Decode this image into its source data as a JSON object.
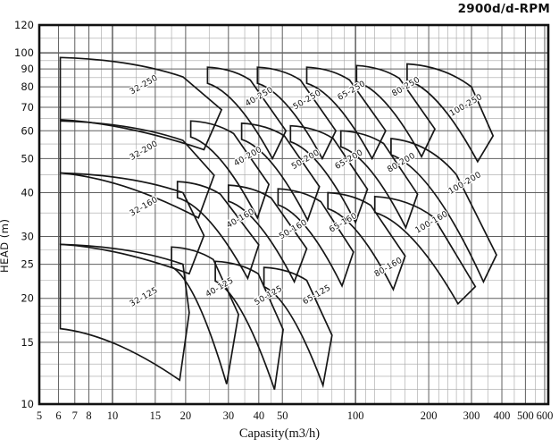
{
  "title": "2900d/d-RPM",
  "chart_data": {
    "type": "area",
    "subtype": "pump-selection-envelope-chart",
    "title": "2900d/d-RPM",
    "xlabel": "Capasity(m3/h)",
    "ylabel": "HEAD (m)",
    "x_scale": "log",
    "y_scale": "log",
    "xlim": [
      5,
      621
    ],
    "ylim": [
      10,
      120
    ],
    "grid": true,
    "x_ticks": [
      5,
      6,
      7,
      8,
      10,
      15,
      20,
      30,
      40,
      50,
      100,
      200,
      300,
      400,
      500,
      600
    ],
    "x_minor_gridlines": [
      9,
      12.5,
      17.5,
      25,
      35,
      45,
      60,
      70,
      80,
      90,
      110,
      120,
      140,
      160,
      180,
      220,
      240,
      260,
      280,
      350,
      450,
      550
    ],
    "y_ticks": [
      10,
      15,
      20,
      25,
      30,
      40,
      50,
      60,
      70,
      80,
      90,
      100,
      120
    ],
    "y_minor_gridlines": [
      11,
      12,
      13,
      14,
      16,
      17,
      18,
      19,
      22.5,
      27.5,
      35,
      45,
      55,
      65,
      75,
      85,
      95,
      110
    ],
    "envelopes": [
      {
        "label": "32-125",
        "tl": [
          6.1,
          28.5
        ],
        "tr": [
          19.5,
          25.0
        ],
        "knee": [
          20.7,
          18.2
        ],
        "v": [
          18.9,
          11.7
        ],
        "bl": [
          6.1,
          16.4
        ],
        "label_pos": [
          13.6,
          19.9
        ]
      },
      {
        "label": "32-160",
        "tl": [
          6.1,
          45.5
        ],
        "tr": [
          19.5,
          40.0
        ],
        "knee": [
          23.8,
          30.2
        ],
        "v": [
          20.7,
          23.5
        ],
        "bl": [
          6.1,
          28.5
        ],
        "label_pos": [
          13.6,
          36.0
        ]
      },
      {
        "label": "32-200",
        "tl": [
          6.1,
          64.0
        ],
        "tr": [
          19.5,
          56.3
        ],
        "knee": [
          26.2,
          44.8
        ],
        "v": [
          22.6,
          33.9
        ],
        "bl": [
          6.1,
          45.5
        ],
        "label_pos": [
          13.6,
          52.0
        ]
      },
      {
        "label": "32-250",
        "tl": [
          6.1,
          97.0
        ],
        "tr": [
          19.5,
          85.4
        ],
        "knee": [
          28.1,
          68.9
        ],
        "v": [
          23.8,
          53.0
        ],
        "bl": [
          6.1,
          64.5
        ],
        "label_pos": [
          13.6,
          80.0
        ]
      },
      {
        "label": "40-125",
        "tl": [
          17.5,
          28.0
        ],
        "tr": [
          26.0,
          25.8
        ],
        "knee": [
          33.0,
          18.0
        ],
        "v": [
          29.5,
          11.4
        ],
        "bl": [
          17.5,
          24.6
        ],
        "label_pos": [
          27.9,
          21.2
        ]
      },
      {
        "label": "40-160",
        "tl": [
          18.5,
          43.0
        ],
        "tr": [
          27.8,
          39.6
        ],
        "knee": [
          40.0,
          28.4
        ],
        "v": [
          36.0,
          22.8
        ],
        "bl": [
          18.5,
          38.7
        ],
        "label_pos": [
          34.0,
          33.3
        ]
      },
      {
        "label": "40-200",
        "tl": [
          21.0,
          64.0
        ],
        "tr": [
          31.5,
          58.9
        ],
        "knee": [
          44.0,
          42.2
        ],
        "v": [
          39.5,
          33.9
        ],
        "bl": [
          21.0,
          57.6
        ],
        "label_pos": [
          36.5,
          50.0
        ]
      },
      {
        "label": "40-250",
        "tl": [
          24.6,
          91.0
        ],
        "tr": [
          36.9,
          83.7
        ],
        "knee": [
          51.7,
          60.0
        ],
        "v": [
          45.5,
          50.0
        ],
        "bl": [
          24.6,
          81.9
        ],
        "label_pos": [
          40.6,
          74.0
        ]
      },
      {
        "label": "50-125",
        "tl": [
          26.5,
          25.5
        ],
        "tr": [
          39.8,
          23.5
        ],
        "knee": [
          50.4,
          16.3
        ],
        "v": [
          46.4,
          11.0
        ],
        "bl": [
          26.5,
          22.4
        ],
        "label_pos": [
          44.3,
          20.1
        ]
      },
      {
        "label": "50-160",
        "tl": [
          30.0,
          42.0
        ],
        "tr": [
          45.0,
          38.6
        ],
        "knee": [
          63.0,
          27.7
        ],
        "v": [
          56.0,
          22.3
        ],
        "bl": [
          30.0,
          37.8
        ],
        "label_pos": [
          56.0,
          31.0
        ]
      },
      {
        "label": "50-200",
        "tl": [
          34.0,
          63.0
        ],
        "tr": [
          51.0,
          58.0
        ],
        "knee": [
          71.0,
          41.6
        ],
        "v": [
          63.5,
          33.4
        ],
        "bl": [
          34.0,
          56.7
        ],
        "label_pos": [
          63.0,
          49.0
        ]
      },
      {
        "label": "50-250",
        "tl": [
          39.5,
          91.0
        ],
        "tr": [
          59.3,
          83.7
        ],
        "knee": [
          83.0,
          60.0
        ],
        "v": [
          73.0,
          50.0
        ],
        "bl": [
          39.5,
          81.9
        ],
        "label_pos": [
          63.9,
          72.5
        ]
      },
      {
        "label": "65-125",
        "tl": [
          42.0,
          24.5
        ],
        "tr": [
          63.0,
          22.5
        ],
        "knee": [
          80.0,
          15.7
        ],
        "v": [
          73.5,
          11.3
        ],
        "bl": [
          42.0,
          21.6
        ],
        "label_pos": [
          70.0,
          20.2
        ]
      },
      {
        "label": "65-160",
        "tl": [
          48.0,
          41.0
        ],
        "tr": [
          72.0,
          37.7
        ],
        "knee": [
          98.0,
          27.1
        ],
        "v": [
          88.0,
          21.7
        ],
        "bl": [
          48.0,
          36.9
        ],
        "label_pos": [
          90.0,
          32.4
        ]
      },
      {
        "label": "65-200",
        "tl": [
          54.0,
          62.0
        ],
        "tr": [
          81.0,
          57.0
        ],
        "knee": [
          112.0,
          40.9
        ],
        "v": [
          100.0,
          32.9
        ],
        "bl": [
          54.0,
          55.8
        ],
        "label_pos": [
          95.0,
          49.0
        ]
      },
      {
        "label": "65-250",
        "tl": [
          63.0,
          91.0
        ],
        "tr": [
          94.5,
          83.7
        ],
        "knee": [
          133.0,
          60.0
        ],
        "v": [
          117.0,
          50.0
        ],
        "bl": [
          63.0,
          81.9
        ],
        "label_pos": [
          97.4,
          77.0
        ]
      },
      {
        "label": "80-160",
        "tl": [
          77.0,
          40.0
        ],
        "tr": [
          115.5,
          36.8
        ],
        "knee": [
          160.0,
          26.4
        ],
        "v": [
          143.0,
          21.2
        ],
        "bl": [
          77.0,
          36.0
        ],
        "label_pos": [
          138.0,
          24.2
        ]
      },
      {
        "label": "80-200",
        "tl": [
          87.0,
          60.0
        ],
        "tr": [
          130.5,
          55.2
        ],
        "knee": [
          180.0,
          39.6
        ],
        "v": [
          161.0,
          31.8
        ],
        "bl": [
          87.0,
          54.0
        ],
        "label_pos": [
          156.0,
          48.0
        ]
      },
      {
        "label": "80-250",
        "tl": [
          101.0,
          92.0
        ],
        "tr": [
          151.5,
          84.6
        ],
        "knee": [
          212.0,
          60.7
        ],
        "v": [
          187.0,
          50.6
        ],
        "bl": [
          101.0,
          82.8
        ],
        "label_pos": [
          163.0,
          79.0
        ]
      },
      {
        "label": "100-160",
        "tl": [
          120.0,
          39.0
        ],
        "tr": [
          210.0,
          34.0
        ],
        "knee": [
          311.0,
          21.6
        ],
        "v": [
          264.0,
          19.3
        ],
        "bl": [
          120.0,
          35.1
        ],
        "label_pos": [
          208.0,
          32.5
        ]
      },
      {
        "label": "100-200",
        "tl": [
          140.0,
          57.0
        ],
        "tr": [
          260.0,
          45.0
        ],
        "knee": [
          380.0,
          26.6
        ],
        "v": [
          336.0,
          22.3
        ],
        "bl": [
          140.0,
          51.3
        ],
        "label_pos": [
          285.0,
          42.0
        ]
      },
      {
        "label": "100-250",
        "tl": [
          163.0,
          93.0
        ],
        "tr": [
          300.0,
          80.0
        ],
        "knee": [
          368.0,
          58.0
        ],
        "v": [
          318.0,
          49.0
        ],
        "bl": [
          163.0,
          83.7
        ],
        "label_pos": [
          288.0,
          70.0
        ]
      }
    ]
  },
  "colors": {
    "envelope_stroke": "#161616",
    "border": "#111111",
    "grid_major": "#5f5f5f",
    "grid_minor": "#a4a4a4",
    "text": "#111111"
  }
}
